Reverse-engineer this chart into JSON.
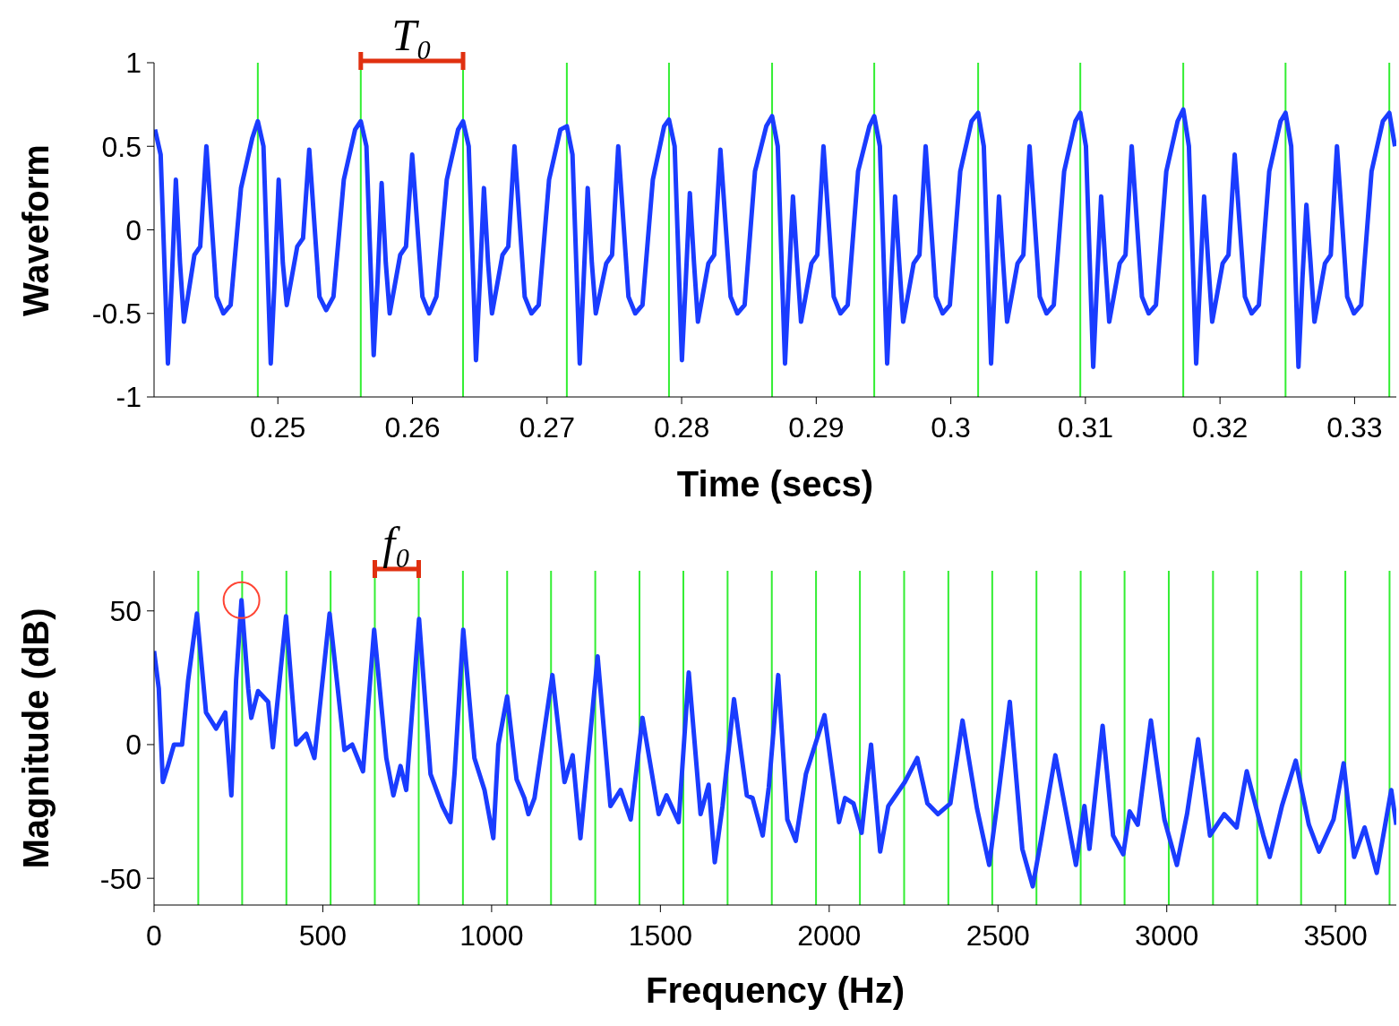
{
  "chart_data": [
    {
      "type": "line",
      "xlabel": "Time (secs)",
      "ylabel": "Waveform",
      "xlim": [
        0.2408,
        0.3331
      ],
      "ylim": [
        -1,
        1
      ],
      "xticks": [
        0.25,
        0.26,
        0.27,
        0.28,
        0.29,
        0.3,
        0.31,
        0.32,
        0.33
      ],
      "yticks": [
        -1,
        -0.5,
        0,
        0.5,
        1
      ],
      "series": [
        {
          "color": "#1a3cff",
          "x": [
            0.24087,
            0.24129,
            0.24183,
            0.24212,
            0.24242,
            0.24273,
            0.24302,
            0.2438,
            0.24423,
            0.24469,
            0.24545,
            0.24595,
            0.24649,
            0.24726,
            0.2481,
            0.24851,
            0.24893,
            0.24947,
            0.24976,
            0.25006,
            0.25037,
            0.25066,
            0.25144,
            0.25187,
            0.25233,
            0.25309,
            0.25359,
            0.25413,
            0.2549,
            0.25574,
            0.25616,
            0.25658,
            0.25712,
            0.25741,
            0.25771,
            0.25802,
            0.25831,
            0.25909,
            0.25952,
            0.25998,
            0.26074,
            0.26124,
            0.26178,
            0.26255,
            0.26339,
            0.26376,
            0.26418,
            0.26472,
            0.26501,
            0.26531,
            0.26562,
            0.26591,
            0.26669,
            0.26712,
            0.26758,
            0.26834,
            0.26884,
            0.26938,
            0.27015,
            0.27099,
            0.27147,
            0.27189,
            0.27243,
            0.27272,
            0.27302,
            0.27333,
            0.27362,
            0.2744,
            0.27483,
            0.27529,
            0.27605,
            0.27655,
            0.27709,
            0.27786,
            0.2787,
            0.27906,
            0.27948,
            0.28002,
            0.28031,
            0.28061,
            0.28092,
            0.28121,
            0.28199,
            0.28242,
            0.28288,
            0.28364,
            0.28414,
            0.28468,
            0.28545,
            0.28629,
            0.28672,
            0.28714,
            0.28768,
            0.28797,
            0.28827,
            0.28858,
            0.28887,
            0.28965,
            0.29008,
            0.29054,
            0.2913,
            0.2918,
            0.29234,
            0.29311,
            0.29395,
            0.29431,
            0.29473,
            0.29527,
            0.29556,
            0.29586,
            0.29617,
            0.29646,
            0.29724,
            0.29767,
            0.29813,
            0.29889,
            0.29939,
            0.29993,
            0.3007,
            0.30154,
            0.30203,
            0.30245,
            0.30299,
            0.30328,
            0.30358,
            0.30389,
            0.30418,
            0.30496,
            0.30539,
            0.30585,
            0.30661,
            0.30711,
            0.30765,
            0.30842,
            0.30926,
            0.30962,
            0.31004,
            0.31058,
            0.31087,
            0.31117,
            0.31148,
            0.31177,
            0.31255,
            0.31298,
            0.31344,
            0.3142,
            0.3147,
            0.31524,
            0.31601,
            0.31685,
            0.31727,
            0.31769,
            0.31823,
            0.31852,
            0.31882,
            0.31913,
            0.31942,
            0.3202,
            0.32063,
            0.32109,
            0.32185,
            0.32235,
            0.32289,
            0.32366,
            0.3245,
            0.32487,
            0.32529,
            0.32583,
            0.32612,
            0.32642,
            0.32673,
            0.32702,
            0.3278,
            0.32823,
            0.32869,
            0.32945,
            0.32995,
            0.33049,
            0.33126,
            0.3321,
            0.33258,
            0.333
          ],
          "values": [
            0.6,
            0.45,
            -0.8,
            -0.3,
            0.3,
            -0.2,
            -0.55,
            -0.15,
            -0.1,
            0.5,
            -0.4,
            -0.5,
            -0.45,
            0.25,
            0.55,
            0.65,
            0.5,
            -0.8,
            -0.3,
            0.3,
            -0.2,
            -0.45,
            -0.1,
            -0.05,
            0.48,
            -0.4,
            -0.48,
            -0.4,
            0.3,
            0.6,
            0.65,
            0.5,
            -0.75,
            -0.3,
            0.28,
            -0.2,
            -0.5,
            -0.15,
            -0.1,
            0.45,
            -0.4,
            -0.5,
            -0.4,
            0.3,
            0.6,
            0.65,
            0.5,
            -0.78,
            -0.3,
            0.25,
            -0.2,
            -0.5,
            -0.15,
            -0.1,
            0.5,
            -0.4,
            -0.5,
            -0.45,
            0.3,
            0.6,
            0.62,
            0.45,
            -0.8,
            -0.3,
            0.25,
            -0.2,
            -0.5,
            -0.2,
            -0.15,
            0.5,
            -0.4,
            -0.5,
            -0.45,
            0.3,
            0.62,
            0.66,
            0.5,
            -0.78,
            -0.3,
            0.22,
            -0.2,
            -0.55,
            -0.2,
            -0.15,
            0.48,
            -0.4,
            -0.5,
            -0.45,
            0.35,
            0.62,
            0.68,
            0.5,
            -0.8,
            -0.3,
            0.2,
            -0.2,
            -0.55,
            -0.2,
            -0.15,
            0.5,
            -0.4,
            -0.5,
            -0.45,
            0.35,
            0.62,
            0.68,
            0.5,
            -0.8,
            -0.3,
            0.2,
            -0.2,
            -0.55,
            -0.2,
            -0.15,
            0.5,
            -0.4,
            -0.5,
            -0.45,
            0.35,
            0.65,
            0.7,
            0.5,
            -0.8,
            -0.3,
            0.2,
            -0.2,
            -0.55,
            -0.2,
            -0.15,
            0.5,
            -0.4,
            -0.5,
            -0.45,
            0.35,
            0.65,
            0.7,
            0.5,
            -0.82,
            -0.3,
            0.2,
            -0.2,
            -0.55,
            -0.2,
            -0.15,
            0.5,
            -0.4,
            -0.5,
            -0.45,
            0.35,
            0.65,
            0.72,
            0.5,
            -0.8,
            -0.3,
            0.2,
            -0.2,
            -0.55,
            -0.2,
            -0.15,
            0.45,
            -0.4,
            -0.5,
            -0.45,
            0.35,
            0.65,
            0.7,
            0.5,
            -0.82,
            -0.3,
            0.15,
            -0.2,
            -0.55,
            -0.2,
            -0.15,
            0.5,
            -0.4,
            -0.5,
            -0.45,
            0.35,
            0.65,
            0.7,
            0.5
          ]
        }
      ],
      "ref_lines": [
        {
          "axis": "x",
          "value": 0.24851,
          "color": "#33ee33"
        },
        {
          "axis": "x",
          "value": 0.25616,
          "color": "#33ee33"
        },
        {
          "axis": "x",
          "value": 0.26376,
          "color": "#33ee33"
        },
        {
          "axis": "x",
          "value": 0.27147,
          "color": "#33ee33"
        },
        {
          "axis": "x",
          "value": 0.27906,
          "color": "#33ee33"
        },
        {
          "axis": "x",
          "value": 0.28672,
          "color": "#33ee33"
        },
        {
          "axis": "x",
          "value": 0.29431,
          "color": "#33ee33"
        },
        {
          "axis": "x",
          "value": 0.30203,
          "color": "#33ee33"
        },
        {
          "axis": "x",
          "value": 0.30962,
          "color": "#33ee33"
        },
        {
          "axis": "x",
          "value": 0.31727,
          "color": "#33ee33"
        },
        {
          "axis": "x",
          "value": 0.32487,
          "color": "#33ee33"
        },
        {
          "axis": "x",
          "value": 0.33258,
          "color": "#33ee33"
        }
      ],
      "annotations": [
        "T₀"
      ]
    },
    {
      "type": "line",
      "xlabel": "Frequency (Hz)",
      "ylabel": "Magnitude (dB)",
      "xlim": [
        0,
        3680
      ],
      "ylim": [
        -60,
        65
      ],
      "xticks": [
        0,
        500,
        1000,
        1500,
        2000,
        2500,
        3000,
        3500
      ],
      "yticks": [
        -50,
        0,
        50
      ],
      "series": [
        {
          "color": "#1a3cff",
          "x": [
            0,
            14,
            26,
            41,
            59,
            83,
            101,
            127,
            154,
            184,
            211,
            229,
            243,
            259,
            279,
            288,
            308,
            338,
            352,
            391,
            421,
            451,
            475,
            520,
            564,
            587,
            619,
            652,
            688,
            709,
            730,
            747,
            785,
            819,
            854,
            878,
            890,
            916,
            949,
            979,
            1005,
            1020,
            1046,
            1074,
            1097,
            1109,
            1127,
            1180,
            1216,
            1240,
            1263,
            1314,
            1352,
            1382,
            1412,
            1447,
            1495,
            1518,
            1554,
            1584,
            1619,
            1643,
            1661,
            1684,
            1718,
            1756,
            1773,
            1803,
            1821,
            1849,
            1876,
            1901,
            1931,
            1986,
            2029,
            2047,
            2072,
            2096,
            2124,
            2151,
            2175,
            2224,
            2261,
            2291,
            2322,
            2359,
            2395,
            2438,
            2474,
            2502,
            2535,
            2572,
            2603,
            2627,
            2670,
            2731,
            2756,
            2771,
            2810,
            2841,
            2871,
            2890,
            2914,
            2953,
            2993,
            3030,
            3060,
            3093,
            3128,
            3170,
            3207,
            3237,
            3286,
            3305,
            3341,
            3382,
            3421,
            3451,
            3494,
            3524,
            3555,
            3586,
            3622,
            3665,
            3680
          ],
          "values": [
            35,
            21,
            -14,
            -8,
            0,
            0,
            24,
            49,
            12,
            6,
            12,
            -19,
            24,
            54,
            21,
            10,
            20,
            16,
            -1,
            48,
            0,
            4,
            -5,
            49,
            -2,
            0,
            -10,
            43,
            -5,
            -19,
            -8,
            -17,
            47,
            -11,
            -23,
            -29,
            -11,
            43,
            -5,
            -17,
            -35,
            0,
            18,
            -13,
            -20,
            -26,
            -20,
            26,
            -14,
            -4,
            -35,
            33,
            -23,
            -17,
            -28,
            10,
            -26,
            -19,
            -29,
            27,
            -26,
            -15,
            -44,
            -23,
            17,
            -19,
            -20,
            -34,
            -16,
            26,
            -28,
            -36,
            -11,
            11,
            -29,
            -20,
            -22,
            -33,
            0,
            -40,
            -23,
            -14,
            -5,
            -22,
            -26,
            -22,
            9,
            -24,
            -45,
            -18,
            16,
            -39,
            -53,
            -36,
            -4,
            -45,
            -23,
            -39,
            7,
            -34,
            -41,
            -25,
            -30,
            9,
            -28,
            -45,
            -26,
            2,
            -34,
            -26,
            -31,
            -10,
            -34,
            -42,
            -23,
            -6,
            -30,
            -40,
            -28,
            -7,
            -42,
            -31,
            -48,
            -17,
            -30
          ]
        }
      ],
      "ref_lines": [
        {
          "axis": "x",
          "value": 131,
          "color": "#33ee33"
        },
        {
          "axis": "x",
          "value": 261,
          "color": "#33ee33"
        },
        {
          "axis": "x",
          "value": 392,
          "color": "#33ee33"
        },
        {
          "axis": "x",
          "value": 523,
          "color": "#33ee33"
        },
        {
          "axis": "x",
          "value": 654,
          "color": "#33ee33"
        },
        {
          "axis": "x",
          "value": 784,
          "color": "#33ee33"
        },
        {
          "axis": "x",
          "value": 915,
          "color": "#33ee33"
        },
        {
          "axis": "x",
          "value": 1046,
          "color": "#33ee33"
        },
        {
          "axis": "x",
          "value": 1176,
          "color": "#33ee33"
        },
        {
          "axis": "x",
          "value": 1307,
          "color": "#33ee33"
        },
        {
          "axis": "x",
          "value": 1438,
          "color": "#33ee33"
        },
        {
          "axis": "x",
          "value": 1568,
          "color": "#33ee33"
        },
        {
          "axis": "x",
          "value": 1699,
          "color": "#33ee33"
        },
        {
          "axis": "x",
          "value": 1830,
          "color": "#33ee33"
        },
        {
          "axis": "x",
          "value": 1961,
          "color": "#33ee33"
        },
        {
          "axis": "x",
          "value": 2091,
          "color": "#33ee33"
        },
        {
          "axis": "x",
          "value": 2222,
          "color": "#33ee33"
        },
        {
          "axis": "x",
          "value": 2353,
          "color": "#33ee33"
        },
        {
          "axis": "x",
          "value": 2483,
          "color": "#33ee33"
        },
        {
          "axis": "x",
          "value": 2614,
          "color": "#33ee33"
        },
        {
          "axis": "x",
          "value": 2745,
          "color": "#33ee33"
        },
        {
          "axis": "x",
          "value": 2875,
          "color": "#33ee33"
        },
        {
          "axis": "x",
          "value": 3006,
          "color": "#33ee33"
        },
        {
          "axis": "x",
          "value": 3137,
          "color": "#33ee33"
        },
        {
          "axis": "x",
          "value": 3268,
          "color": "#33ee33"
        },
        {
          "axis": "x",
          "value": 3398,
          "color": "#33ee33"
        },
        {
          "axis": "x",
          "value": 3529,
          "color": "#33ee33"
        },
        {
          "axis": "x",
          "value": 3660,
          "color": "#33ee33"
        }
      ],
      "annotations": [
        "f₀"
      ]
    }
  ]
}
